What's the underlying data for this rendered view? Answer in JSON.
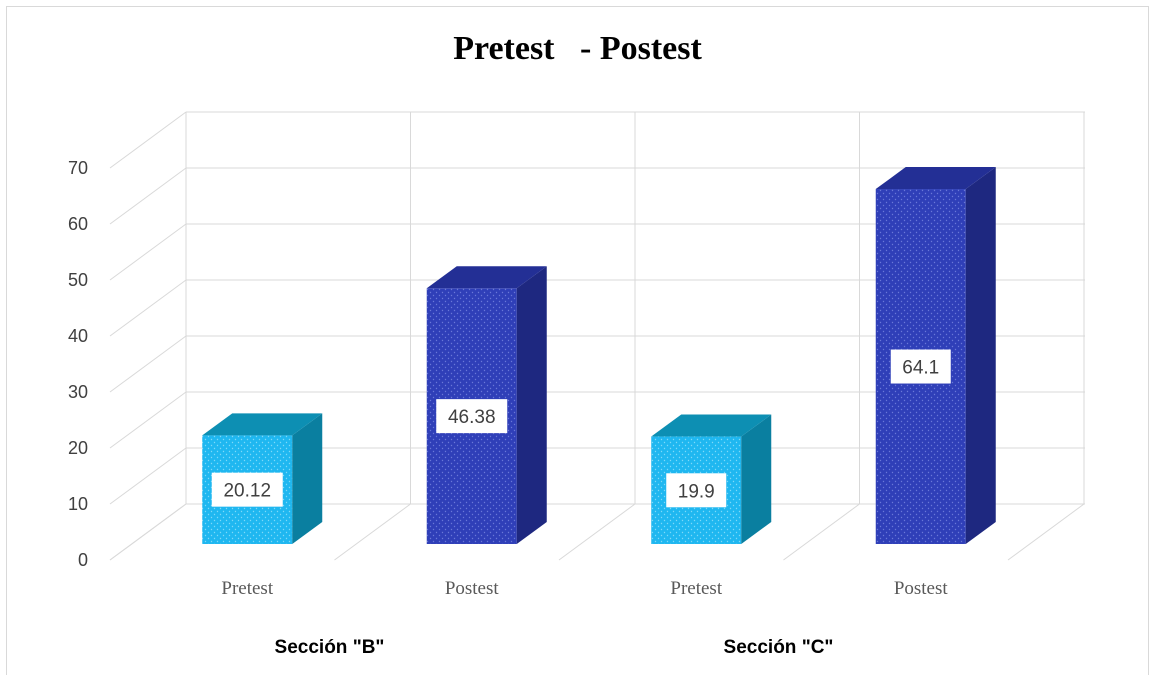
{
  "chart_data": {
    "type": "bar",
    "title": "Pretest   - Postest",
    "groups": [
      {
        "label": "Sección \"B\"",
        "bars": [
          {
            "category": "Pretest",
            "value": 20.12,
            "label": "20.12",
            "color": "#1FB7F0"
          },
          {
            "category": "Postest",
            "value": 46.38,
            "label": "46.38",
            "color": "#2F3FB8"
          }
        ]
      },
      {
        "label": "Sección \"C\"",
        "bars": [
          {
            "category": "Pretest",
            "value": 19.9,
            "label": "19.9",
            "color": "#1FB7F0"
          },
          {
            "category": "Postest",
            "value": 64.1,
            "label": "64.1",
            "color": "#2F3FB8"
          }
        ]
      }
    ],
    "ylim": [
      0,
      70
    ],
    "yticks": [
      0,
      10,
      20,
      30,
      40,
      50,
      60,
      70
    ],
    "xlabel": "",
    "ylabel": "",
    "grid": true,
    "style": "3d-column"
  }
}
